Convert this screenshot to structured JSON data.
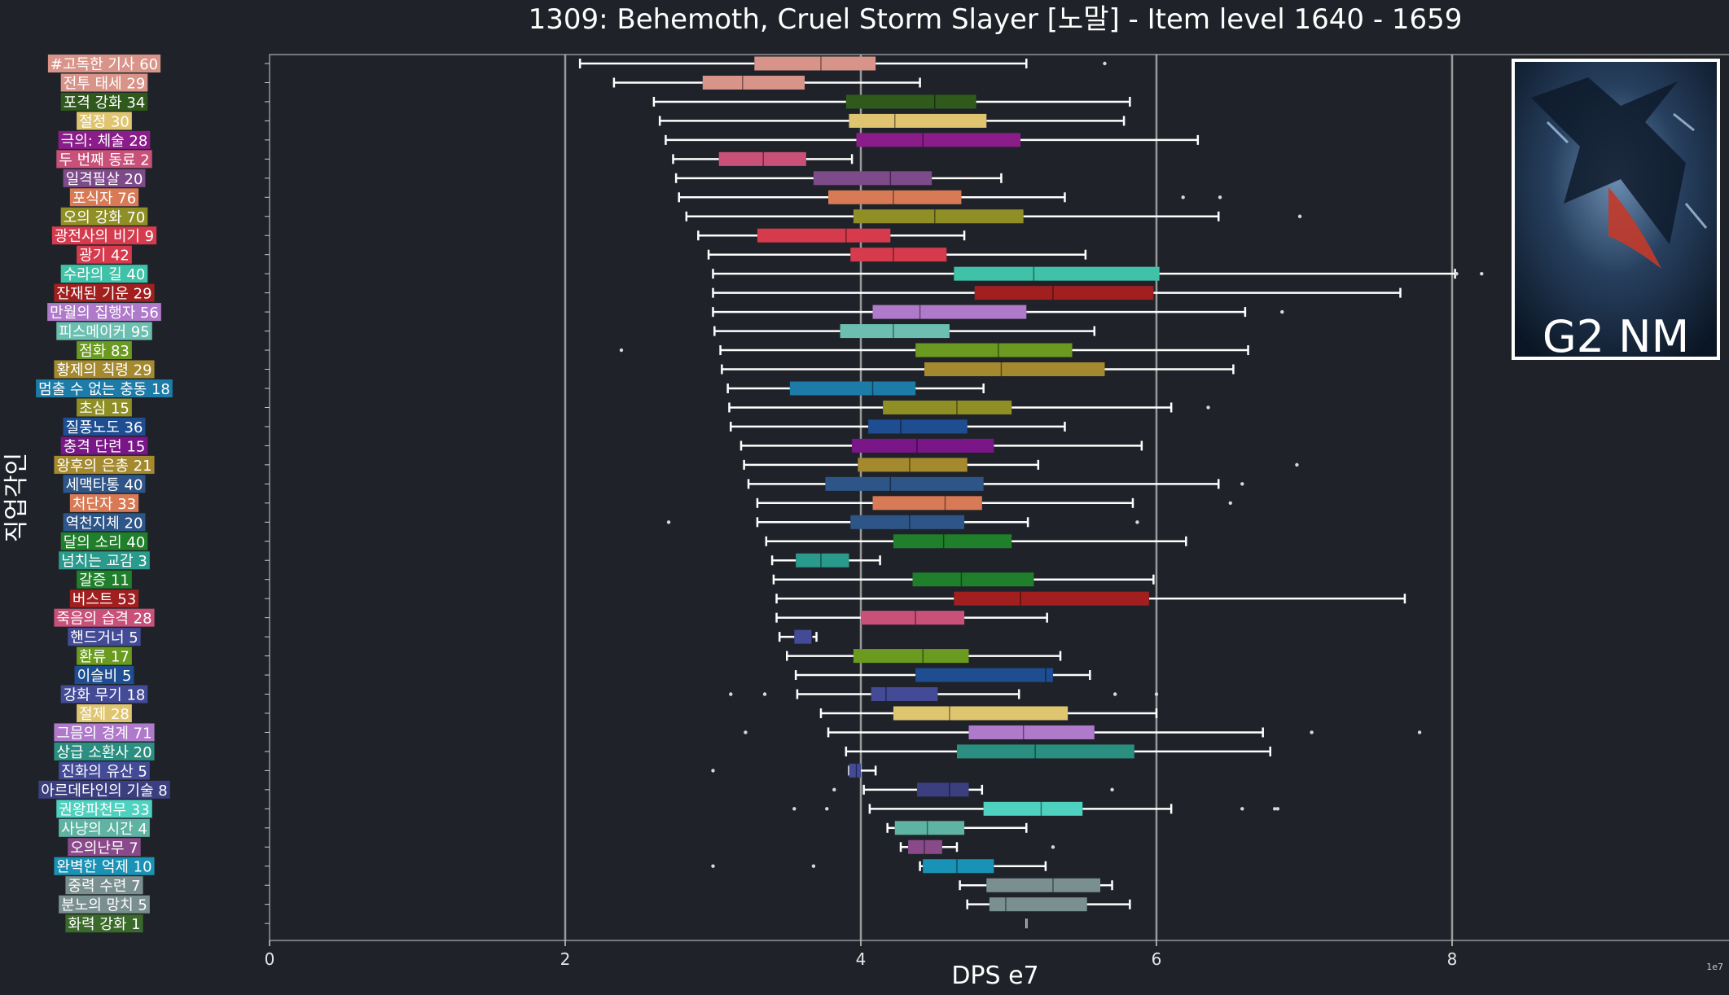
{
  "chart_data": {
    "type": "box",
    "orientation": "horizontal",
    "title": "1309: Behemoth, Cruel Storm Slayer [노말] - Item level 1640 - 1659",
    "xlabel": "DPS e7",
    "ylabel": "직업각인",
    "x_scale_note": "1e7",
    "xlim": [
      0,
      9.8
    ],
    "xticks": [
      0,
      2,
      4,
      6,
      8
    ],
    "vertical_gridlines_at": [
      2,
      4,
      6,
      8
    ],
    "badge_text": "G2 NM",
    "series": [
      {
        "label": "#고독한 기사 60",
        "color": "#d9948a",
        "whislo": 2.1,
        "q1": 3.28,
        "median": 3.73,
        "q3": 4.1,
        "whishi": 5.12,
        "fliers": [
          5.65
        ]
      },
      {
        "label": "전투 태세 29",
        "color": "#d9948a",
        "whislo": 2.33,
        "q1": 2.93,
        "median": 3.2,
        "q3": 3.62,
        "whishi": 4.4,
        "fliers": []
      },
      {
        "label": "포격 강화 34",
        "color": "#2f5a1c",
        "whislo": 2.6,
        "q1": 3.9,
        "median": 4.5,
        "q3": 4.78,
        "whishi": 5.82,
        "fliers": []
      },
      {
        "label": "절정 30",
        "color": "#e0c570",
        "whislo": 2.64,
        "q1": 3.92,
        "median": 4.23,
        "q3": 4.85,
        "whishi": 5.78,
        "fliers": []
      },
      {
        "label": "극의: 체술 28",
        "color": "#8a1d8a",
        "whislo": 2.68,
        "q1": 3.97,
        "median": 4.42,
        "q3": 5.08,
        "whishi": 6.28,
        "fliers": []
      },
      {
        "label": "두 번째 동료 2",
        "color": "#c85079",
        "whislo": 2.73,
        "q1": 3.04,
        "median": 3.34,
        "q3": 3.63,
        "whishi": 3.94,
        "fliers": []
      },
      {
        "label": "일격필살 20",
        "color": "#7d4a8a",
        "whislo": 2.75,
        "q1": 3.68,
        "median": 4.2,
        "q3": 4.48,
        "whishi": 4.95,
        "fliers": []
      },
      {
        "label": "포식자 76",
        "color": "#d87a55",
        "whislo": 2.77,
        "q1": 3.78,
        "median": 4.22,
        "q3": 4.68,
        "whishi": 5.38,
        "fliers": [
          6.18,
          6.43
        ]
      },
      {
        "label": "오의 강화 70",
        "color": "#8f8f26",
        "whislo": 2.82,
        "q1": 3.95,
        "median": 4.5,
        "q3": 5.1,
        "whishi": 6.42,
        "fliers": [
          6.97
        ]
      },
      {
        "label": "광전사의 비기 9",
        "color": "#d63b4d",
        "whislo": 2.9,
        "q1": 3.3,
        "median": 3.9,
        "q3": 4.2,
        "whishi": 4.7,
        "fliers": []
      },
      {
        "label": "광기 42",
        "color": "#d63b4d",
        "whislo": 2.97,
        "q1": 3.93,
        "median": 4.22,
        "q3": 4.58,
        "whishi": 5.52,
        "fliers": []
      },
      {
        "label": "수라의 길 40",
        "color": "#3fc2a8",
        "whislo": 3.0,
        "q1": 4.63,
        "median": 5.17,
        "q3": 6.02,
        "whishi": 8.02,
        "fliers": [
          8.03,
          8.2
        ]
      },
      {
        "label": "잔재된 기운 29",
        "color": "#a11f1f",
        "whislo": 3.0,
        "q1": 4.77,
        "median": 5.3,
        "q3": 5.98,
        "whishi": 7.65,
        "fliers": []
      },
      {
        "label": "만월의 집행자 56",
        "color": "#b07acb",
        "whislo": 3.0,
        "q1": 4.08,
        "median": 4.4,
        "q3": 5.12,
        "whishi": 6.6,
        "fliers": [
          6.85
        ]
      },
      {
        "label": "피스메이커 95",
        "color": "#6cbfb0",
        "whislo": 3.01,
        "q1": 3.86,
        "median": 4.22,
        "q3": 4.6,
        "whishi": 5.58,
        "fliers": []
      },
      {
        "label": "점화 83",
        "color": "#6a9a1f",
        "whislo": 3.05,
        "q1": 4.37,
        "median": 4.93,
        "q3": 5.43,
        "whishi": 6.62,
        "fliers": [
          2.38
        ]
      },
      {
        "label": "황제의 칙령 29",
        "color": "#a5892e",
        "whislo": 3.06,
        "q1": 4.43,
        "median": 4.95,
        "q3": 5.65,
        "whishi": 6.52,
        "fliers": []
      },
      {
        "label": "멈출 수 없는 충동 18",
        "color": "#1d7ba8",
        "whislo": 3.1,
        "q1": 3.52,
        "median": 4.08,
        "q3": 4.37,
        "whishi": 4.83,
        "fliers": []
      },
      {
        "label": "초심 15",
        "color": "#8f8f26",
        "whislo": 3.11,
        "q1": 4.15,
        "median": 4.65,
        "q3": 5.02,
        "whishi": 6.1,
        "fliers": [
          6.35
        ]
      },
      {
        "label": "질풍노도 36",
        "color": "#1e4e91",
        "whislo": 3.12,
        "q1": 4.05,
        "median": 4.27,
        "q3": 4.72,
        "whishi": 5.38,
        "fliers": []
      },
      {
        "label": "충격 단련 15",
        "color": "#7a1687",
        "whislo": 3.19,
        "q1": 3.94,
        "median": 4.38,
        "q3": 4.9,
        "whishi": 5.9,
        "fliers": []
      },
      {
        "label": "왕후의 은총 21",
        "color": "#a5892e",
        "whislo": 3.21,
        "q1": 3.98,
        "median": 4.33,
        "q3": 4.72,
        "whishi": 5.2,
        "fliers": [
          6.95
        ]
      },
      {
        "label": "세맥타통 40",
        "color": "#2e5588",
        "whislo": 3.24,
        "q1": 3.76,
        "median": 4.2,
        "q3": 4.83,
        "whishi": 6.42,
        "fliers": [
          6.58
        ]
      },
      {
        "label": "처단자 33",
        "color": "#d87a55",
        "whislo": 3.3,
        "q1": 4.08,
        "median": 4.57,
        "q3": 4.82,
        "whishi": 5.84,
        "fliers": [
          6.5
        ]
      },
      {
        "label": "역천지체 20",
        "color": "#2e5588",
        "whislo": 3.3,
        "q1": 3.93,
        "median": 4.33,
        "q3": 4.7,
        "whishi": 5.13,
        "fliers": [
          2.7,
          5.87
        ]
      },
      {
        "label": "달의 소리 40",
        "color": "#1f7f2a",
        "whislo": 3.36,
        "q1": 4.22,
        "median": 4.56,
        "q3": 5.02,
        "whishi": 6.2,
        "fliers": []
      },
      {
        "label": "넘치는 교감 3",
        "color": "#2a9a8c",
        "whislo": 3.4,
        "q1": 3.56,
        "median": 3.73,
        "q3": 3.92,
        "whishi": 4.13,
        "fliers": []
      },
      {
        "label": "갈증 11",
        "color": "#1f7f2a",
        "whislo": 3.41,
        "q1": 4.35,
        "median": 4.68,
        "q3": 5.17,
        "whishi": 5.98,
        "fliers": []
      },
      {
        "label": "버스트 53",
        "color": "#a11f1f",
        "whislo": 3.43,
        "q1": 4.63,
        "median": 5.08,
        "q3": 5.95,
        "whishi": 7.68,
        "fliers": []
      },
      {
        "label": "죽음의 습격 28",
        "color": "#c85079",
        "whislo": 3.43,
        "q1": 4.0,
        "median": 4.37,
        "q3": 4.7,
        "whishi": 5.26,
        "fliers": []
      },
      {
        "label": "핸드거너 5",
        "color": "#434a96",
        "whislo": 3.45,
        "q1": 3.55,
        "median": 3.67,
        "q3": 3.67,
        "whishi": 3.7,
        "fliers": []
      },
      {
        "label": "환류 17",
        "color": "#6a9a1f",
        "whislo": 3.5,
        "q1": 3.95,
        "median": 4.42,
        "q3": 4.73,
        "whishi": 5.35,
        "fliers": []
      },
      {
        "label": "이슬비 5",
        "color": "#1e4e91",
        "whislo": 3.56,
        "q1": 4.37,
        "median": 5.25,
        "q3": 5.3,
        "whishi": 5.55,
        "fliers": []
      },
      {
        "label": "강화 무기 18",
        "color": "#434a96",
        "whislo": 3.57,
        "q1": 4.07,
        "median": 4.17,
        "q3": 4.52,
        "whishi": 5.07,
        "fliers": [
          3.12,
          3.35,
          5.72,
          6.0
        ]
      },
      {
        "label": "절제 28",
        "color": "#e0c570",
        "whislo": 3.73,
        "q1": 4.22,
        "median": 4.6,
        "q3": 5.4,
        "whishi": 6.0,
        "fliers": []
      },
      {
        "label": "그믐의 경계 71",
        "color": "#b07acb",
        "whislo": 3.78,
        "q1": 4.73,
        "median": 5.1,
        "q3": 5.58,
        "whishi": 6.72,
        "fliers": [
          3.22,
          7.05,
          7.78
        ]
      },
      {
        "label": "상급 소환사 20",
        "color": "#2a8f80",
        "whislo": 3.9,
        "q1": 4.65,
        "median": 5.18,
        "q3": 5.85,
        "whishi": 6.77,
        "fliers": []
      },
      {
        "label": "진화의 유산 5",
        "color": "#434a96",
        "whislo": 3.92,
        "q1": 3.92,
        "median": 3.97,
        "q3": 4.0,
        "whishi": 4.1,
        "fliers": [
          3.0
        ]
      },
      {
        "label": "아르데타인의 기술 8",
        "color": "#3b3f80",
        "whislo": 4.02,
        "q1": 4.38,
        "median": 4.6,
        "q3": 4.73,
        "whishi": 4.82,
        "fliers": [
          3.82,
          5.7
        ]
      },
      {
        "label": "권왕파천무 33",
        "color": "#4fd1bf",
        "whislo": 4.06,
        "q1": 4.83,
        "median": 5.22,
        "q3": 5.5,
        "whishi": 6.1,
        "fliers": [
          3.55,
          3.77,
          6.58,
          6.8,
          6.82
        ]
      },
      {
        "label": "사냥의 시간 4",
        "color": "#5fb3a3",
        "whislo": 4.18,
        "q1": 4.23,
        "median": 4.45,
        "q3": 4.7,
        "whishi": 5.12,
        "fliers": []
      },
      {
        "label": "오의난무 7",
        "color": "#8a4a8a",
        "whislo": 4.27,
        "q1": 4.32,
        "median": 4.43,
        "q3": 4.55,
        "whishi": 4.65,
        "fliers": [
          5.3
        ]
      },
      {
        "label": "완벽한 억제 10",
        "color": "#1a92b5",
        "whislo": 4.4,
        "q1": 4.42,
        "median": 4.65,
        "q3": 4.9,
        "whishi": 5.25,
        "fliers": [
          3.0,
          3.68
        ]
      },
      {
        "label": "중력 수련 7",
        "color": "#7a8f8f",
        "whislo": 4.67,
        "q1": 4.85,
        "median": 5.3,
        "q3": 5.62,
        "whishi": 5.7,
        "fliers": []
      },
      {
        "label": "분노의 망치 5",
        "color": "#7a8f8f",
        "whislo": 4.72,
        "q1": 4.87,
        "median": 4.98,
        "q3": 5.53,
        "whishi": 5.82,
        "fliers": []
      },
      {
        "label": "화력 강화 1",
        "color": "#3a6a2a",
        "whislo": 5.12,
        "q1": 5.12,
        "median": 5.12,
        "q3": 5.12,
        "whishi": 5.12,
        "fliers": []
      }
    ]
  },
  "colors": {
    "background": "#1f2329",
    "gridline": "#9a9a9a",
    "whisker": "#ffffff",
    "text": "#ffffff"
  }
}
